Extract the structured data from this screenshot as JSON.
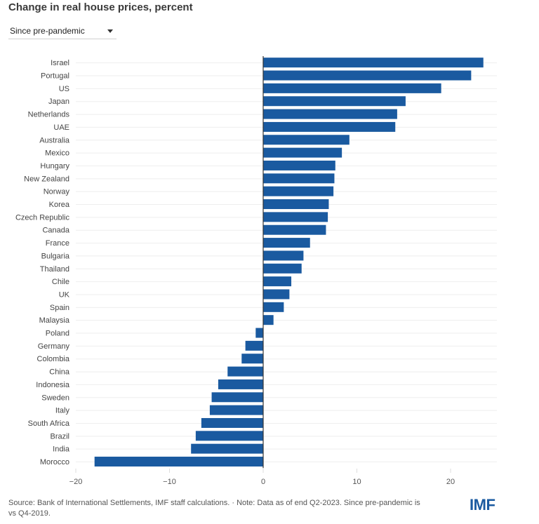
{
  "header": {
    "title": "Change in real house prices, percent"
  },
  "controls": {
    "period_dropdown": {
      "selected": "Since pre-pandemic",
      "icon": "caret-down-icon"
    }
  },
  "footer": {
    "source": "Source: Bank of International Settlements, IMF staff calculations. · Note: Data as of end Q2-2023. Since pre-pandemic is vs Q4-2019.",
    "logo": "IMF"
  },
  "colors": {
    "bar": "#1a5aa0",
    "grid": "#eeeeee",
    "zero_line": "#333333",
    "logo": "#1a5aa0"
  },
  "chart_data": {
    "type": "bar",
    "orientation": "horizontal",
    "title": "Change in real house prices, percent",
    "xlabel": "",
    "ylabel": "",
    "xlim": [
      -20,
      25
    ],
    "xticks": [
      -20,
      -10,
      0,
      10,
      20
    ],
    "xtick_labels": [
      "−20",
      "−10",
      "0",
      "10",
      "20"
    ],
    "grid": true,
    "legend": "none",
    "categories": [
      "Israel",
      "Portugal",
      "US",
      "Japan",
      "Netherlands",
      "UAE",
      "Australia",
      "Mexico",
      "Hungary",
      "New Zealand",
      "Norway",
      "Korea",
      "Czech Republic",
      "Canada",
      "France",
      "Bulgaria",
      "Thailand",
      "Chile",
      "UK",
      "Spain",
      "Malaysia",
      "Poland",
      "Germany",
      "Colombia",
      "China",
      "Indonesia",
      "Sweden",
      "Italy",
      "South Africa",
      "Brazil",
      "India",
      "Morocco"
    ],
    "values": [
      23.5,
      22.2,
      19.0,
      15.2,
      14.3,
      14.1,
      9.2,
      8.4,
      7.7,
      7.6,
      7.5,
      7.0,
      6.9,
      6.7,
      5.0,
      4.3,
      4.1,
      3.0,
      2.8,
      2.2,
      1.1,
      -0.8,
      -1.9,
      -2.3,
      -3.8,
      -4.8,
      -5.5,
      -5.7,
      -6.6,
      -7.2,
      -7.7,
      -18.0
    ]
  }
}
